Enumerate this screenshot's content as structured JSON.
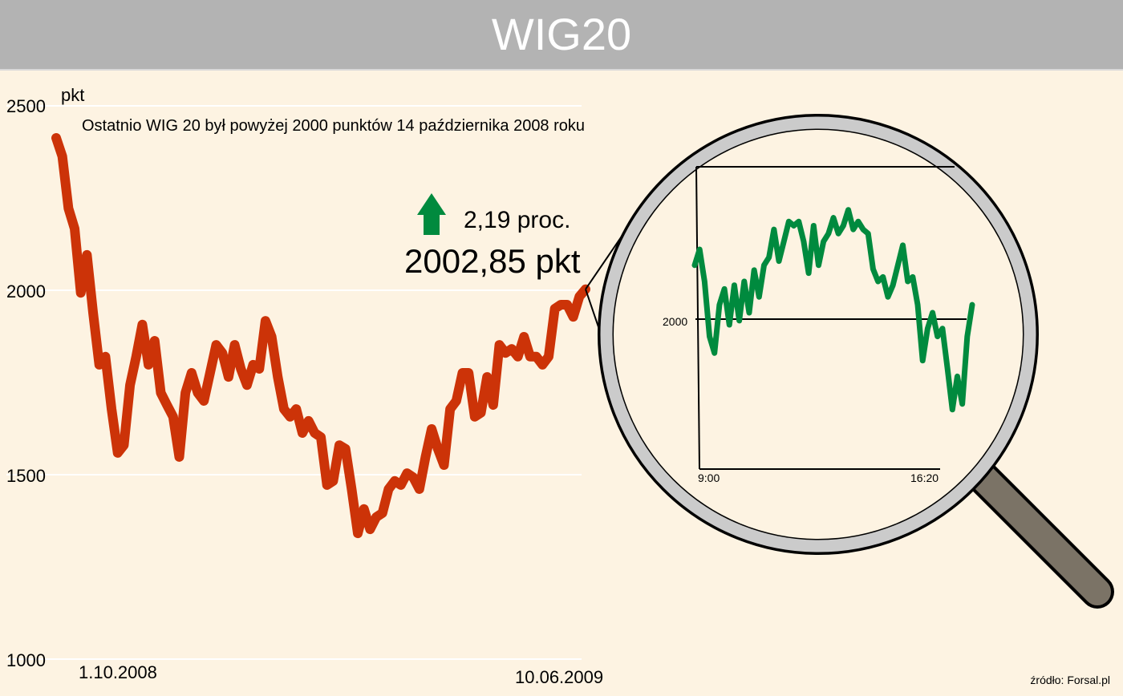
{
  "header": {
    "title": "WIG20"
  },
  "annotation": {
    "note": "Ostatnio WIG 20 był powyżej 2000 punktów 14 października 2008 roku",
    "change": "2,19 proc.",
    "change_icon": "arrow-up-icon",
    "change_color": "#008a3e",
    "last_value": "2002,85 pkt"
  },
  "source": "źródło: Forsal.pl",
  "chart_data": [
    {
      "type": "line",
      "ylabel": "pkt",
      "ylim": [
        1000,
        2500
      ],
      "yticks": [
        "1000",
        "1500",
        "2000",
        "2500"
      ],
      "ytick_values": [
        1000,
        1500,
        2000,
        2500
      ],
      "x_start_label": "1.10.2008",
      "x_end_label": "10.06.2009",
      "grid": true,
      "color": "#cc3308",
      "values": [
        2413,
        2363,
        2222,
        2167,
        1993,
        2096,
        1939,
        1798,
        1820,
        1678,
        1559,
        1580,
        1743,
        1820,
        1907,
        1798,
        1863,
        1722,
        1689,
        1657,
        1548,
        1722,
        1776,
        1722,
        1700,
        1776,
        1852,
        1830,
        1765,
        1852,
        1787,
        1743,
        1798,
        1787,
        1917,
        1874,
        1765,
        1678,
        1657,
        1678,
        1613,
        1646,
        1613,
        1602,
        1472,
        1483,
        1580,
        1570,
        1461,
        1341,
        1407,
        1352,
        1385,
        1396,
        1461,
        1483,
        1472,
        1504,
        1493,
        1461,
        1548,
        1624,
        1570,
        1526,
        1678,
        1700,
        1776,
        1776,
        1657,
        1668,
        1765,
        1689,
        1852,
        1830,
        1841,
        1820,
        1874,
        1820,
        1820,
        1798,
        1820,
        1950,
        1961,
        1961,
        1928,
        1983,
        2002.85
      ]
    },
    {
      "type": "line",
      "title": "",
      "yticks": [
        "2000"
      ],
      "ytick_values": [
        2000
      ],
      "ylim": [
        1960,
        2040
      ],
      "x_start_label": "9:00",
      "x_end_label": "16:20",
      "color": "#008a3e",
      "values": [
        2014.3,
        2018.5,
        2010,
        1995.4,
        1991,
        2003.8,
        2008,
        1998.5,
        2009,
        1999.6,
        2010,
        2001.7,
        2013,
        2005.9,
        2014.3,
        2016.4,
        2023.8,
        2015.4,
        2020.6,
        2025.9,
        2024.8,
        2025.9,
        2020.6,
        2012.2,
        2024.8,
        2014.3,
        2020.6,
        2022.7,
        2026.9,
        2022.7,
        2024.8,
        2029,
        2023.8,
        2025.9,
        2023.8,
        2022.7,
        2013.3,
        2010,
        2011.2,
        2005.9,
        2009,
        2014.3,
        2019.6,
        2010,
        2011.2,
        2003.8,
        1989,
        1997.5,
        2001.7,
        1995.4,
        1997.5,
        1987,
        1976,
        1984.8,
        1977.5,
        1995.4,
        2003.8
      ]
    }
  ]
}
